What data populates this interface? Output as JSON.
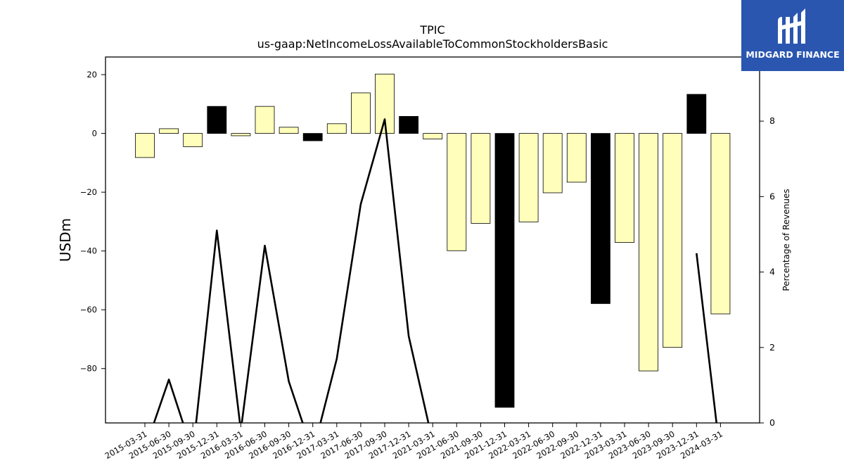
{
  "logo": {
    "text": "MIDGARD FINANCE",
    "background": "#2a56b0"
  },
  "chart_data": {
    "type": "bar",
    "title": "TPIC",
    "subtitle": "us-gaap:NetIncomeLossAvailableToCommonStockholdersBasic",
    "ylabel": "USDm",
    "y2label": "Percentage of Revenues",
    "ylim": [
      -98.5,
      26
    ],
    "y2lim": [
      0,
      9.7
    ],
    "yticks": [
      20,
      0,
      -20,
      -40,
      -60,
      -80
    ],
    "yticklabels": [
      "20",
      "0",
      "−20",
      "−40",
      "−60",
      "−80"
    ],
    "y2ticks": [
      0,
      2,
      4,
      6,
      8
    ],
    "grid": false,
    "categories": [
      "2015-03-31",
      "2015-06-30",
      "2015-09-30",
      "2015-12-31",
      "2016-03-31",
      "2016-06-30",
      "2016-09-30",
      "2016-12-31",
      "2017-03-31",
      "2017-06-30",
      "2017-09-30",
      "2017-12-31",
      "2021-03-31",
      "2021-06-30",
      "2021-09-30",
      "2021-12-31",
      "2022-03-31",
      "2022-06-30",
      "2022-09-30",
      "2022-12-31",
      "2023-03-31",
      "2023-06-30",
      "2023-09-30",
      "2023-12-31",
      "2024-03-31"
    ],
    "series": [
      {
        "kind": "bar",
        "values": [
          -8.2,
          1.6,
          -4.5,
          9.2,
          -0.8,
          9.2,
          2.1,
          -2.5,
          3.3,
          13.8,
          20.2,
          5.8,
          -1.9,
          -39.9,
          -30.6,
          -93.2,
          -30.1,
          -20.2,
          -16.6,
          -57.9,
          -37.1,
          -80.8,
          -72.8,
          13.3,
          -61.4
        ],
        "emphasis": [
          false,
          false,
          false,
          true,
          false,
          false,
          false,
          true,
          false,
          false,
          false,
          true,
          false,
          false,
          false,
          true,
          false,
          false,
          false,
          true,
          false,
          false,
          false,
          true,
          false
        ]
      },
      {
        "kind": "line",
        "axis": "right",
        "values": [
          -0.7,
          1.15,
          -0.8,
          5.1,
          -0.2,
          4.7,
          1.1,
          -0.8,
          1.7,
          5.8,
          8.05,
          2.3,
          -0.5,
          null,
          null,
          null,
          null,
          null,
          null,
          null,
          null,
          null,
          null,
          4.5,
          -0.9
        ]
      }
    ],
    "colors": {
      "bar": "#ffffbb",
      "bar_emphasis": "#000000",
      "edge": "#000000",
      "line": "#000000"
    }
  }
}
